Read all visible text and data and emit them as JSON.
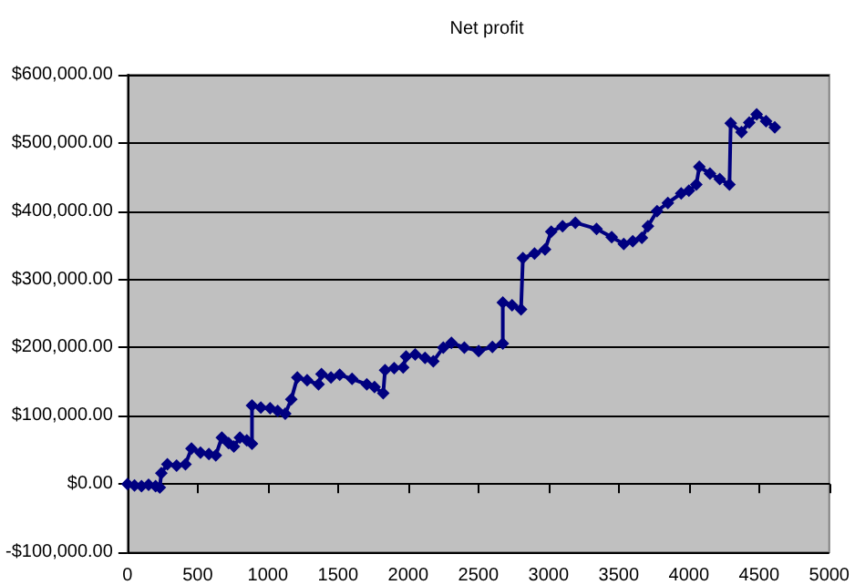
{
  "chart_data": {
    "type": "line",
    "title": "Net profit",
    "x": [
      0,
      50,
      100,
      150,
      200,
      230,
      241,
      284,
      350,
      413,
      456,
      520,
      580,
      629,
      672,
      720,
      758,
      801,
      850,
      887,
      887,
      950,
      1016,
      1070,
      1124,
      1167,
      1210,
      1280,
      1361,
      1382,
      1450,
      1512,
      1600,
      1705,
      1760,
      1822,
      1835,
      1900,
      1964,
      1985,
      2050,
      2120,
      2179,
      2250,
      2308,
      2400,
      2502,
      2600,
      2674,
      2674,
      2740,
      2804,
      2817,
      2900,
      2975,
      3019,
      3100,
      3191,
      3342,
      3450,
      3536,
      3600,
      3665,
      3708,
      3773,
      3850,
      3945,
      4000,
      4053,
      4074,
      4150,
      4220,
      4289,
      4298,
      4375,
      4430,
      4483,
      4550,
      4612
    ],
    "series": [
      {
        "color": "#000080",
        "values": [
          0,
          -2000,
          -3000,
          -1000,
          -3000,
          -5000,
          16000,
          29000,
          27000,
          29000,
          52000,
          46000,
          44000,
          42000,
          68000,
          60000,
          55000,
          68000,
          64000,
          59000,
          115000,
          112000,
          111000,
          107000,
          103000,
          124000,
          156000,
          152000,
          146000,
          161000,
          156000,
          160000,
          154000,
          146000,
          142000,
          133000,
          167000,
          170000,
          171000,
          187000,
          190000,
          185000,
          180000,
          200000,
          207000,
          200000,
          195000,
          201000,
          206000,
          266000,
          262000,
          256000,
          331000,
          338000,
          344000,
          370000,
          378000,
          383000,
          374000,
          362000,
          352000,
          356000,
          361000,
          378000,
          400000,
          412000,
          426000,
          430000,
          439000,
          465000,
          455000,
          447000,
          439000,
          529000,
          516000,
          530000,
          542000,
          532000,
          523000
        ]
      }
    ],
    "xlim": [
      0,
      5000
    ],
    "xticks": [
      0,
      500,
      1000,
      1500,
      2000,
      2500,
      3000,
      3500,
      4000,
      4500,
      5000
    ],
    "ylim": [
      -100000,
      600000
    ],
    "yticks": [
      {
        "value": -100000,
        "label": "-$100,000.00"
      },
      {
        "value": 0,
        "label": "$0.00"
      },
      {
        "value": 100000,
        "label": "$100,000.00"
      },
      {
        "value": 200000,
        "label": "$200,000.00"
      },
      {
        "value": 300000,
        "label": "$300,000.00"
      },
      {
        "value": 400000,
        "label": "$400,000.00"
      },
      {
        "value": 500000,
        "label": "$500,000.00"
      },
      {
        "value": 600000,
        "label": "$600,000.00"
      }
    ],
    "grid": "y",
    "marker": "diamond",
    "line_style": "solid"
  }
}
